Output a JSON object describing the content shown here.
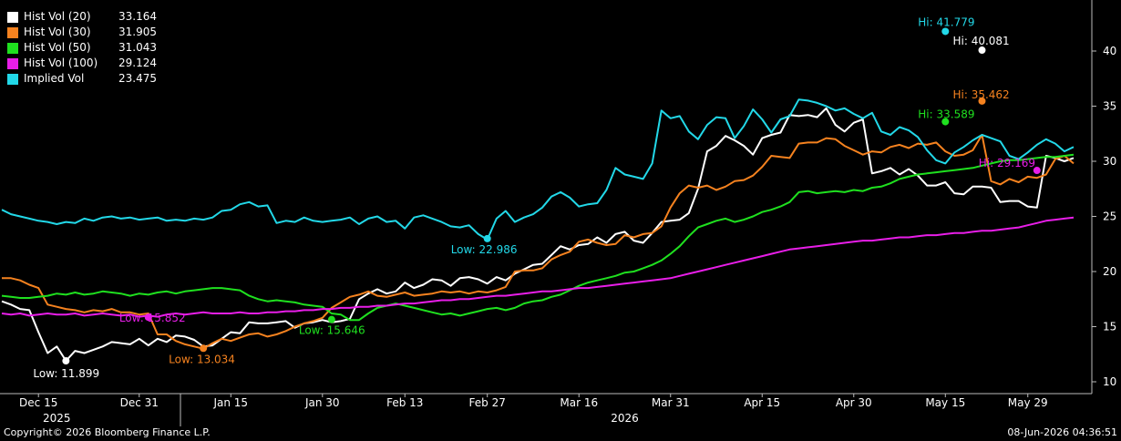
{
  "legend": [
    {
      "name": "Hist Vol (20)",
      "value": "33.164",
      "color": "#ffffff"
    },
    {
      "name": "Hist Vol (30)",
      "value": "31.905",
      "color": "#f5821f"
    },
    {
      "name": "Hist Vol (50)",
      "value": "31.043",
      "color": "#1fe01f"
    },
    {
      "name": "Hist Vol (100)",
      "value": "29.124",
      "color": "#e81ee8"
    },
    {
      "name": "Implied Vol",
      "value": "23.475",
      "color": "#22d8e8"
    }
  ],
  "footer": {
    "copyright": "Copyright© 2026 Bloomberg Finance L.P.",
    "timestamp": "08-Jun-2026 04:36:51"
  },
  "chart_data": {
    "type": "line",
    "x_tick_labels": [
      "Dec 15",
      "Dec 31",
      "Jan 15",
      "Jan 30",
      "Feb 13",
      "Feb 27",
      "Mar 16",
      "Mar 31",
      "Apr 15",
      "Apr 30",
      "May 15",
      "May 29"
    ],
    "year_labels": [
      "2025",
      "2026"
    ],
    "y_ticks": [
      10,
      15,
      20,
      25,
      30,
      35,
      40
    ],
    "ylim": [
      9,
      44
    ],
    "x_count": 118,
    "grid": false,
    "legend_position": "top-left",
    "series": [
      {
        "name": "Hist Vol (20)",
        "color": "#ffffff",
        "values": [
          17.3,
          17.0,
          16.6,
          16.5,
          14.5,
          12.6,
          13.2,
          11.9,
          12.8,
          12.6,
          12.9,
          13.2,
          13.6,
          13.5,
          13.4,
          13.9,
          13.3,
          13.9,
          13.6,
          14.2,
          14.1,
          13.8,
          13.2,
          13.3,
          13.9,
          14.5,
          14.4,
          15.4,
          15.3,
          15.3,
          15.4,
          15.5,
          14.9,
          15.3,
          15.4,
          15.6,
          15.4,
          15.5,
          15.7,
          17.5,
          18.0,
          18.4,
          18.0,
          18.2,
          19.0,
          18.5,
          18.8,
          19.3,
          19.2,
          18.7,
          19.4,
          19.5,
          19.3,
          18.9,
          19.5,
          19.2,
          19.8,
          20.2,
          20.6,
          20.7,
          21.5,
          22.3,
          22.0,
          22.4,
          22.5,
          23.1,
          22.6,
          23.4,
          23.6,
          22.8,
          22.6,
          23.5,
          24.5,
          24.6,
          24.7,
          25.3,
          27.5,
          30.9,
          31.4,
          32.3,
          31.9,
          31.4,
          30.6,
          32.1,
          32.4,
          32.6,
          34.2,
          34.1,
          34.2,
          34.0,
          34.8,
          33.3,
          32.7,
          33.5,
          33.8,
          28.9,
          29.1,
          29.4,
          28.8,
          29.3,
          28.7,
          27.8,
          27.8,
          28.1,
          27.1,
          27.0,
          27.7,
          27.7,
          27.6,
          26.3,
          26.4,
          26.4,
          25.9,
          25.8,
          30.5,
          30.3,
          30.0,
          30.3
        ]
      },
      {
        "name": "Hist Vol (30)",
        "color": "#f5821f",
        "values": [
          19.4,
          19.4,
          19.2,
          18.8,
          18.5,
          17.0,
          16.8,
          16.6,
          16.5,
          16.3,
          16.5,
          16.4,
          16.6,
          16.3,
          16.3,
          16.1,
          16.2,
          14.3,
          14.3,
          13.7,
          13.4,
          13.2,
          13.0,
          13.5,
          13.9,
          13.7,
          14.0,
          14.3,
          14.4,
          14.1,
          14.3,
          14.6,
          15.0,
          15.3,
          15.5,
          15.8,
          16.7,
          17.2,
          17.7,
          17.9,
          18.2,
          17.8,
          17.7,
          17.9,
          18.1,
          17.8,
          17.9,
          18.0,
          18.2,
          18.1,
          18.2,
          18.0,
          18.2,
          18.1,
          18.3,
          18.6,
          20.0,
          20.1,
          20.1,
          20.3,
          21.1,
          21.5,
          21.8,
          22.7,
          22.9,
          22.6,
          22.4,
          22.5,
          23.3,
          23.1,
          23.4,
          23.5,
          24.1,
          25.8,
          27.1,
          27.8,
          27.6,
          27.8,
          27.4,
          27.7,
          28.2,
          28.3,
          28.7,
          29.5,
          30.5,
          30.4,
          30.3,
          31.6,
          31.7,
          31.7,
          32.1,
          32.0,
          31.4,
          31.0,
          30.6,
          30.9,
          30.8,
          31.3,
          31.5,
          31.2,
          31.6,
          31.5,
          31.7,
          30.9,
          30.5,
          30.6,
          31.0,
          32.4,
          28.2,
          27.9,
          28.4,
          28.1,
          28.6,
          28.5,
          28.8,
          30.2,
          30.5,
          29.8
        ]
      },
      {
        "name": "Hist Vol (50)",
        "color": "#1fe01f",
        "values": [
          17.8,
          17.7,
          17.6,
          17.6,
          17.7,
          17.8,
          18.0,
          17.9,
          18.1,
          17.9,
          18.0,
          18.2,
          18.1,
          18.0,
          17.8,
          18.0,
          17.9,
          18.1,
          18.2,
          18.0,
          18.2,
          18.3,
          18.4,
          18.5,
          18.5,
          18.4,
          18.3,
          17.8,
          17.5,
          17.3,
          17.4,
          17.3,
          17.2,
          17.0,
          16.9,
          16.8,
          16.2,
          16.1,
          15.6,
          15.6,
          16.2,
          16.7,
          16.9,
          17.1,
          16.9,
          16.7,
          16.5,
          16.3,
          16.1,
          16.2,
          16.0,
          16.2,
          16.4,
          16.6,
          16.7,
          16.5,
          16.7,
          17.1,
          17.3,
          17.4,
          17.7,
          17.9,
          18.3,
          18.7,
          19.0,
          19.2,
          19.4,
          19.6,
          19.9,
          20.0,
          20.3,
          20.6,
          21.0,
          21.6,
          22.3,
          23.2,
          24.0,
          24.3,
          24.6,
          24.8,
          24.5,
          24.7,
          25.0,
          25.4,
          25.6,
          25.9,
          26.3,
          27.2,
          27.3,
          27.1,
          27.2,
          27.3,
          27.2,
          27.4,
          27.3,
          27.6,
          27.7,
          28.0,
          28.4,
          28.6,
          28.8,
          28.9,
          29.0,
          29.1,
          29.2,
          29.3,
          29.4,
          29.6,
          29.8,
          30.0,
          30.1,
          30.1,
          30.2,
          30.3,
          30.4,
          30.4,
          30.5,
          30.6
        ]
      },
      {
        "name": "Hist Vol (100)",
        "color": "#e81ee8",
        "values": [
          16.2,
          16.1,
          16.2,
          16.0,
          16.1,
          16.2,
          16.1,
          16.1,
          16.2,
          16.0,
          16.1,
          16.2,
          16.1,
          16.0,
          16.1,
          15.9,
          16.0,
          15.9,
          16.1,
          16.2,
          16.1,
          16.2,
          16.3,
          16.2,
          16.2,
          16.2,
          16.3,
          16.2,
          16.2,
          16.3,
          16.3,
          16.4,
          16.4,
          16.5,
          16.5,
          16.6,
          16.6,
          16.7,
          16.7,
          16.8,
          16.8,
          16.9,
          16.9,
          17.0,
          17.1,
          17.1,
          17.2,
          17.3,
          17.4,
          17.4,
          17.5,
          17.5,
          17.6,
          17.7,
          17.8,
          17.8,
          17.9,
          18.0,
          18.1,
          18.2,
          18.2,
          18.3,
          18.4,
          18.5,
          18.5,
          18.6,
          18.7,
          18.8,
          18.9,
          19.0,
          19.1,
          19.2,
          19.3,
          19.4,
          19.6,
          19.8,
          20.0,
          20.2,
          20.4,
          20.6,
          20.8,
          21.0,
          21.2,
          21.4,
          21.6,
          21.8,
          22.0,
          22.1,
          22.2,
          22.3,
          22.4,
          22.5,
          22.6,
          22.7,
          22.8,
          22.8,
          22.9,
          23.0,
          23.1,
          23.1,
          23.2,
          23.3,
          23.3,
          23.4,
          23.5,
          23.5,
          23.6,
          23.7,
          23.7,
          23.8,
          23.9,
          24.0,
          24.2,
          24.4,
          24.6,
          24.7,
          24.8,
          24.9
        ]
      },
      {
        "name": "Implied Vol",
        "color": "#22d8e8",
        "values": [
          25.6,
          25.2,
          25.0,
          24.8,
          24.6,
          24.5,
          24.3,
          24.5,
          24.4,
          24.8,
          24.6,
          24.9,
          25.0,
          24.8,
          24.9,
          24.7,
          24.8,
          24.9,
          24.6,
          24.7,
          24.6,
          24.8,
          24.7,
          24.9,
          25.5,
          25.6,
          26.1,
          26.3,
          25.9,
          26.0,
          24.4,
          24.6,
          24.5,
          24.9,
          24.6,
          24.5,
          24.6,
          24.7,
          24.9,
          24.3,
          24.8,
          25.0,
          24.5,
          24.6,
          23.9,
          24.9,
          25.1,
          24.8,
          24.5,
          24.1,
          24.0,
          24.2,
          23.4,
          22.9,
          24.8,
          25.5,
          24.5,
          24.9,
          25.2,
          25.8,
          26.8,
          27.2,
          26.7,
          25.9,
          26.1,
          26.2,
          27.4,
          29.4,
          28.8,
          28.6,
          28.4,
          29.8,
          34.6,
          33.9,
          34.1,
          32.7,
          32.0,
          33.3,
          34.0,
          33.9,
          32.1,
          33.2,
          34.7,
          33.8,
          32.6,
          33.8,
          34.1,
          35.6,
          35.5,
          35.3,
          35.0,
          34.6,
          34.8,
          34.3,
          33.9,
          34.4,
          32.7,
          32.4,
          33.1,
          32.8,
          32.2,
          31.0,
          30.1,
          29.8,
          30.8,
          31.3,
          31.9,
          32.4,
          32.1,
          31.8,
          30.5,
          30.2,
          30.8,
          31.5,
          32.0,
          31.6,
          30.9,
          31.3
        ]
      }
    ],
    "annotations": [
      {
        "text": "Low: 11.899",
        "series": "Hist Vol (20)",
        "value": 11.899
      },
      {
        "text": "Low: 13.034",
        "series": "Hist Vol (30)",
        "value": 13.034
      },
      {
        "text": "Low: 15.852",
        "series": "Hist Vol (100)",
        "value": 15.852
      },
      {
        "text": "Low: 15.646",
        "series": "Hist Vol (50)",
        "value": 15.646
      },
      {
        "text": "Low: 22.986",
        "series": "Implied Vol",
        "value": 22.986
      },
      {
        "text": "Hi: 41.779",
        "series": "Implied Vol",
        "value": 41.779
      },
      {
        "text": "Hi: 40.081",
        "series": "Hist Vol (20)",
        "value": 40.081
      },
      {
        "text": "Hi: 35.462",
        "series": "Hist Vol (30)",
        "value": 35.462
      },
      {
        "text": "Hi: 33.589",
        "series": "Hist Vol (50)",
        "value": 33.589
      },
      {
        "text": "Hi: 29.169",
        "series": "Hist Vol (100)",
        "value": 29.169
      }
    ]
  }
}
